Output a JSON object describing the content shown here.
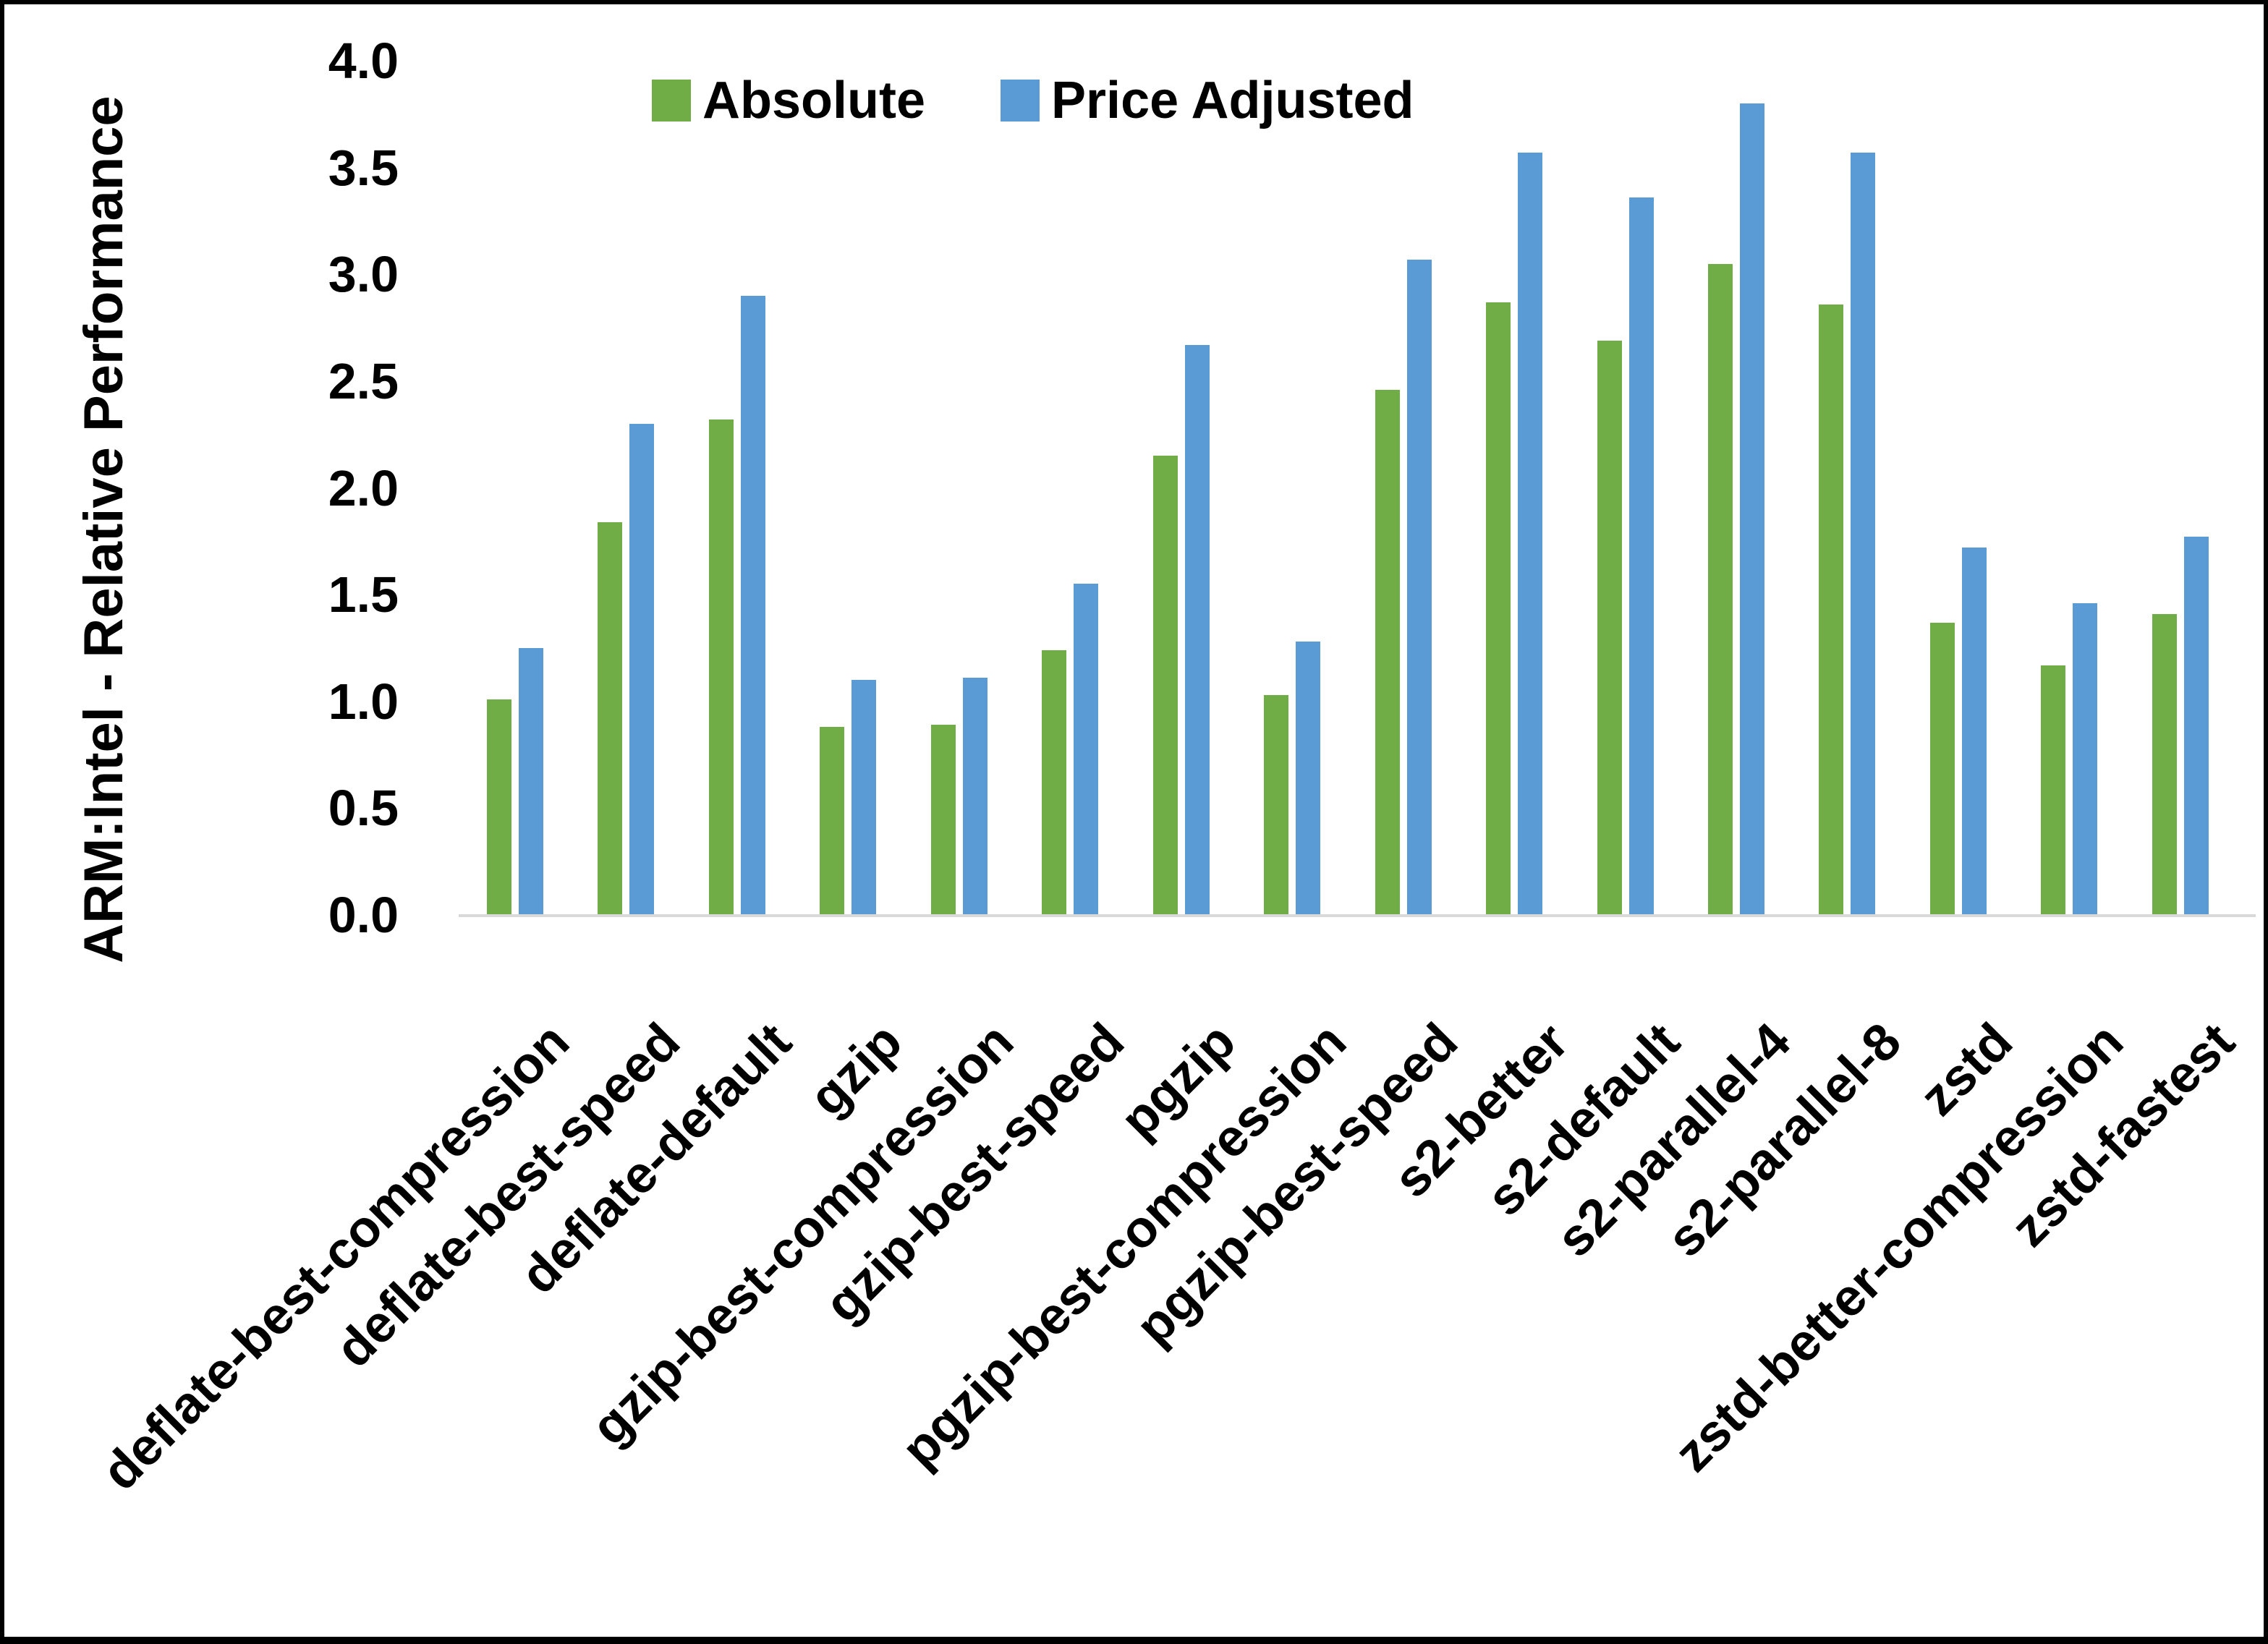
{
  "chart_data": {
    "type": "bar",
    "title": "",
    "xlabel": "",
    "ylabel": "ARM:Intel - Relative Performance",
    "ylim": [
      0.0,
      4.0
    ],
    "ytick_step": 0.5,
    "yticks": [
      "0.0",
      "0.5",
      "1.0",
      "1.5",
      "2.0",
      "2.5",
      "3.0",
      "3.5",
      "4.0"
    ],
    "grid": false,
    "legend_position": "top-center",
    "categories": [
      "deflate-best-compression",
      "deflate-best-speed",
      "deflate-default",
      "gzip",
      "gzip-best-compression",
      "gzip-best-speed",
      "pgzip",
      "pgzip-best-compression",
      "pgzip-best-speed",
      "s2-better",
      "s2-default",
      "s2-parallel-4",
      "s2-parallel-8",
      "zstd",
      "zstd-better-compression",
      "zstd-fastest"
    ],
    "series": [
      {
        "name": "Absolute",
        "color": "#70AD47",
        "values": [
          1.01,
          1.84,
          2.32,
          0.88,
          0.89,
          1.24,
          2.15,
          1.03,
          2.46,
          2.87,
          2.69,
          3.05,
          2.86,
          1.37,
          1.17,
          1.41
        ]
      },
      {
        "name": "Price Adjusted",
        "color": "#5B9BD5",
        "values": [
          1.25,
          2.3,
          2.9,
          1.1,
          1.11,
          1.55,
          2.67,
          1.28,
          3.07,
          3.57,
          3.36,
          3.8,
          3.57,
          1.72,
          1.46,
          1.77
        ]
      }
    ],
    "axis_line_color": "#D9D9D9",
    "background_color": "#FFFFFF",
    "border_color": "#000000"
  }
}
